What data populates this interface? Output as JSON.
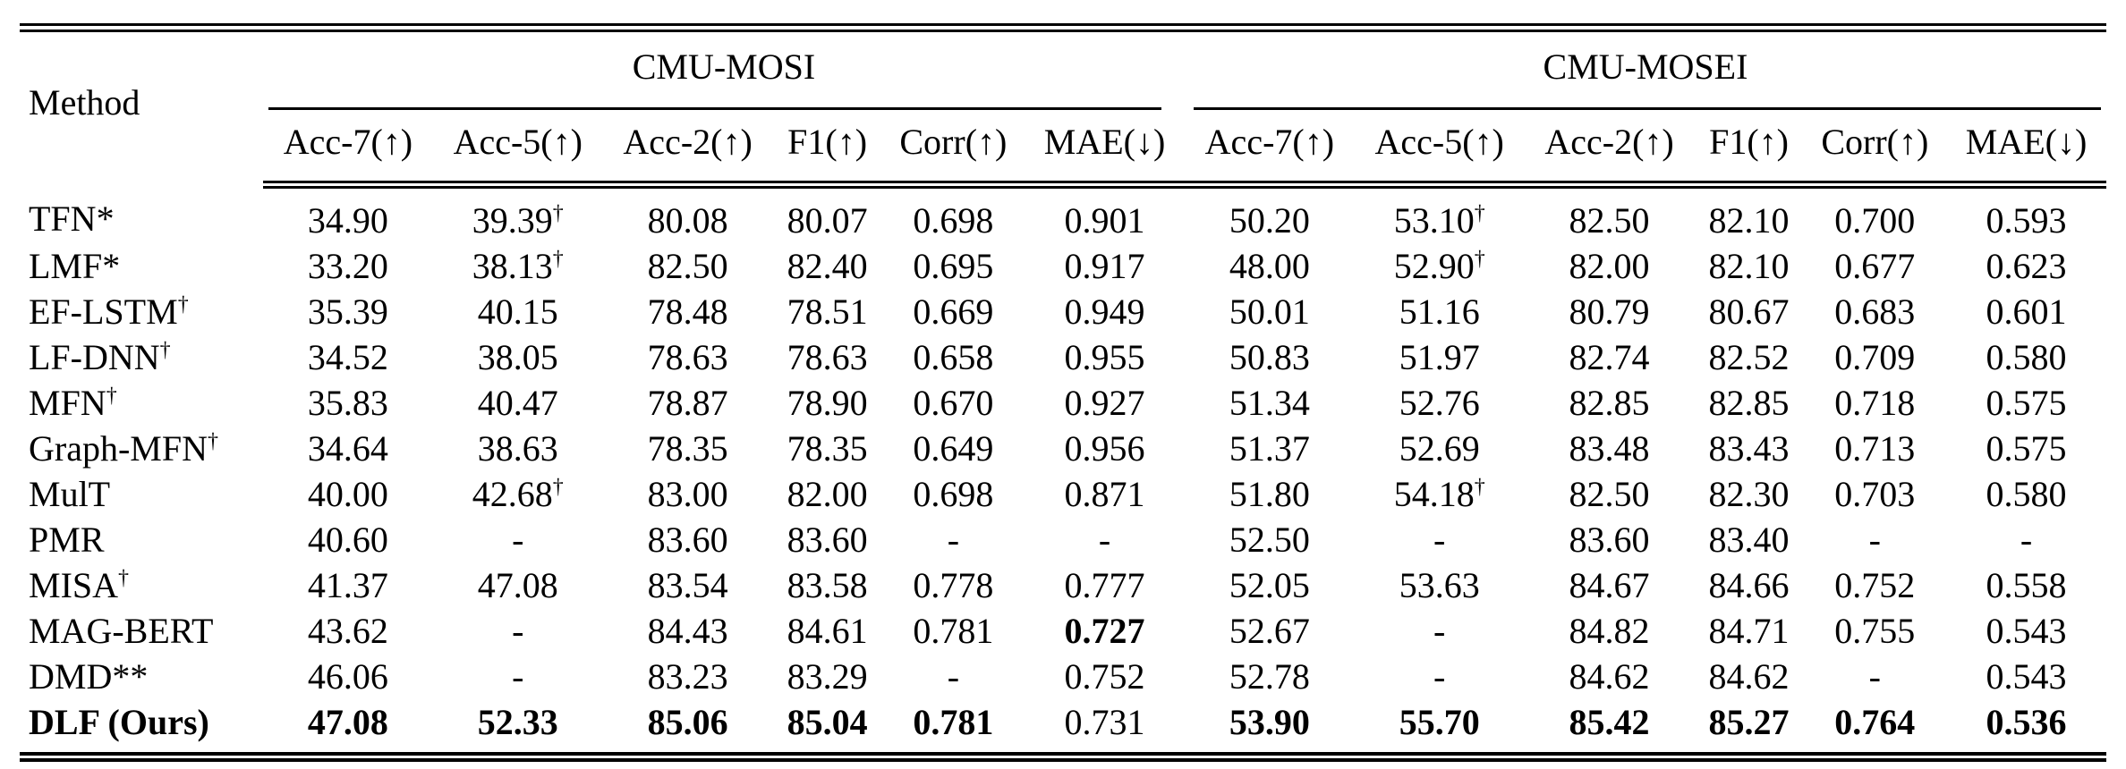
{
  "table": {
    "method_header": "Method",
    "groups": [
      {
        "label": "CMU-MOSI",
        "cols": [
          "Acc-7(↑)",
          "Acc-5(↑)",
          "Acc-2(↑)",
          "F1(↑)",
          "Corr(↑)",
          "MAE(↓)"
        ]
      },
      {
        "label": "CMU-MOSEI",
        "cols": [
          "Acc-7(↑)",
          "Acc-5(↑)",
          "Acc-2(↑)",
          "F1(↑)",
          "Corr(↑)",
          "MAE(↓)"
        ]
      }
    ],
    "rows": [
      [
        "TFN*",
        "34.90",
        {
          "t": "39.39",
          "s": "†"
        },
        "80.08",
        "80.07",
        "0.698",
        "0.901",
        "50.20",
        {
          "t": "53.10",
          "s": "†"
        },
        "82.50",
        "82.10",
        "0.700",
        "0.593"
      ],
      [
        "LMF*",
        "33.20",
        {
          "t": "38.13",
          "s": "†"
        },
        "82.50",
        "82.40",
        "0.695",
        "0.917",
        "48.00",
        {
          "t": "52.90",
          "s": "†"
        },
        "82.00",
        "82.10",
        "0.677",
        "0.623"
      ],
      [
        {
          "t": "EF-LSTM",
          "s": "†"
        },
        "35.39",
        "40.15",
        "78.48",
        "78.51",
        "0.669",
        "0.949",
        "50.01",
        "51.16",
        "80.79",
        "80.67",
        "0.683",
        "0.601"
      ],
      [
        {
          "t": "LF-DNN",
          "s": "†"
        },
        "34.52",
        "38.05",
        "78.63",
        "78.63",
        "0.658",
        "0.955",
        "50.83",
        "51.97",
        "82.74",
        "82.52",
        "0.709",
        "0.580"
      ],
      [
        {
          "t": "MFN",
          "s": "†"
        },
        "35.83",
        "40.47",
        "78.87",
        "78.90",
        "0.670",
        "0.927",
        "51.34",
        "52.76",
        "82.85",
        "82.85",
        "0.718",
        "0.575"
      ],
      [
        {
          "t": "Graph-MFN",
          "s": "†"
        },
        "34.64",
        "38.63",
        "78.35",
        "78.35",
        "0.649",
        "0.956",
        "51.37",
        "52.69",
        "83.48",
        "83.43",
        "0.713",
        "0.575"
      ],
      [
        "MulT",
        "40.00",
        {
          "t": "42.68",
          "s": "†"
        },
        "83.00",
        "82.00",
        "0.698",
        "0.871",
        "51.80",
        {
          "t": "54.18",
          "s": "†"
        },
        "82.50",
        "82.30",
        "0.703",
        "0.580"
      ],
      [
        "PMR",
        "40.60",
        "-",
        "83.60",
        "83.60",
        "-",
        "-",
        "52.50",
        "-",
        "83.60",
        "83.40",
        "-",
        "-"
      ],
      [
        {
          "t": "MISA",
          "s": "†"
        },
        "41.37",
        "47.08",
        "83.54",
        "83.58",
        "0.778",
        "0.777",
        "52.05",
        "53.63",
        "84.67",
        "84.66",
        "0.752",
        "0.558"
      ],
      [
        "MAG-BERT",
        "43.62",
        "-",
        "84.43",
        "84.61",
        "0.781",
        {
          "t": "0.727",
          "b": true
        },
        "52.67",
        "-",
        "84.82",
        "84.71",
        "0.755",
        "0.543"
      ],
      [
        "DMD**",
        "46.06",
        "-",
        "83.23",
        "83.29",
        "-",
        "0.752",
        "52.78",
        "-",
        "84.62",
        "84.62",
        "-",
        "0.543"
      ],
      [
        {
          "t": "DLF (Ours)",
          "b": true
        },
        {
          "t": "47.08",
          "b": true
        },
        {
          "t": "52.33",
          "b": true
        },
        {
          "t": "85.06",
          "b": true
        },
        {
          "t": "85.04",
          "b": true
        },
        {
          "t": "0.781",
          "b": true
        },
        "0.731",
        {
          "t": "53.90",
          "b": true
        },
        {
          "t": "55.70",
          "b": true
        },
        {
          "t": "85.42",
          "b": true
        },
        {
          "t": "85.27",
          "b": true
        },
        {
          "t": "0.764",
          "b": true
        },
        {
          "t": "0.536",
          "b": true
        }
      ]
    ]
  }
}
